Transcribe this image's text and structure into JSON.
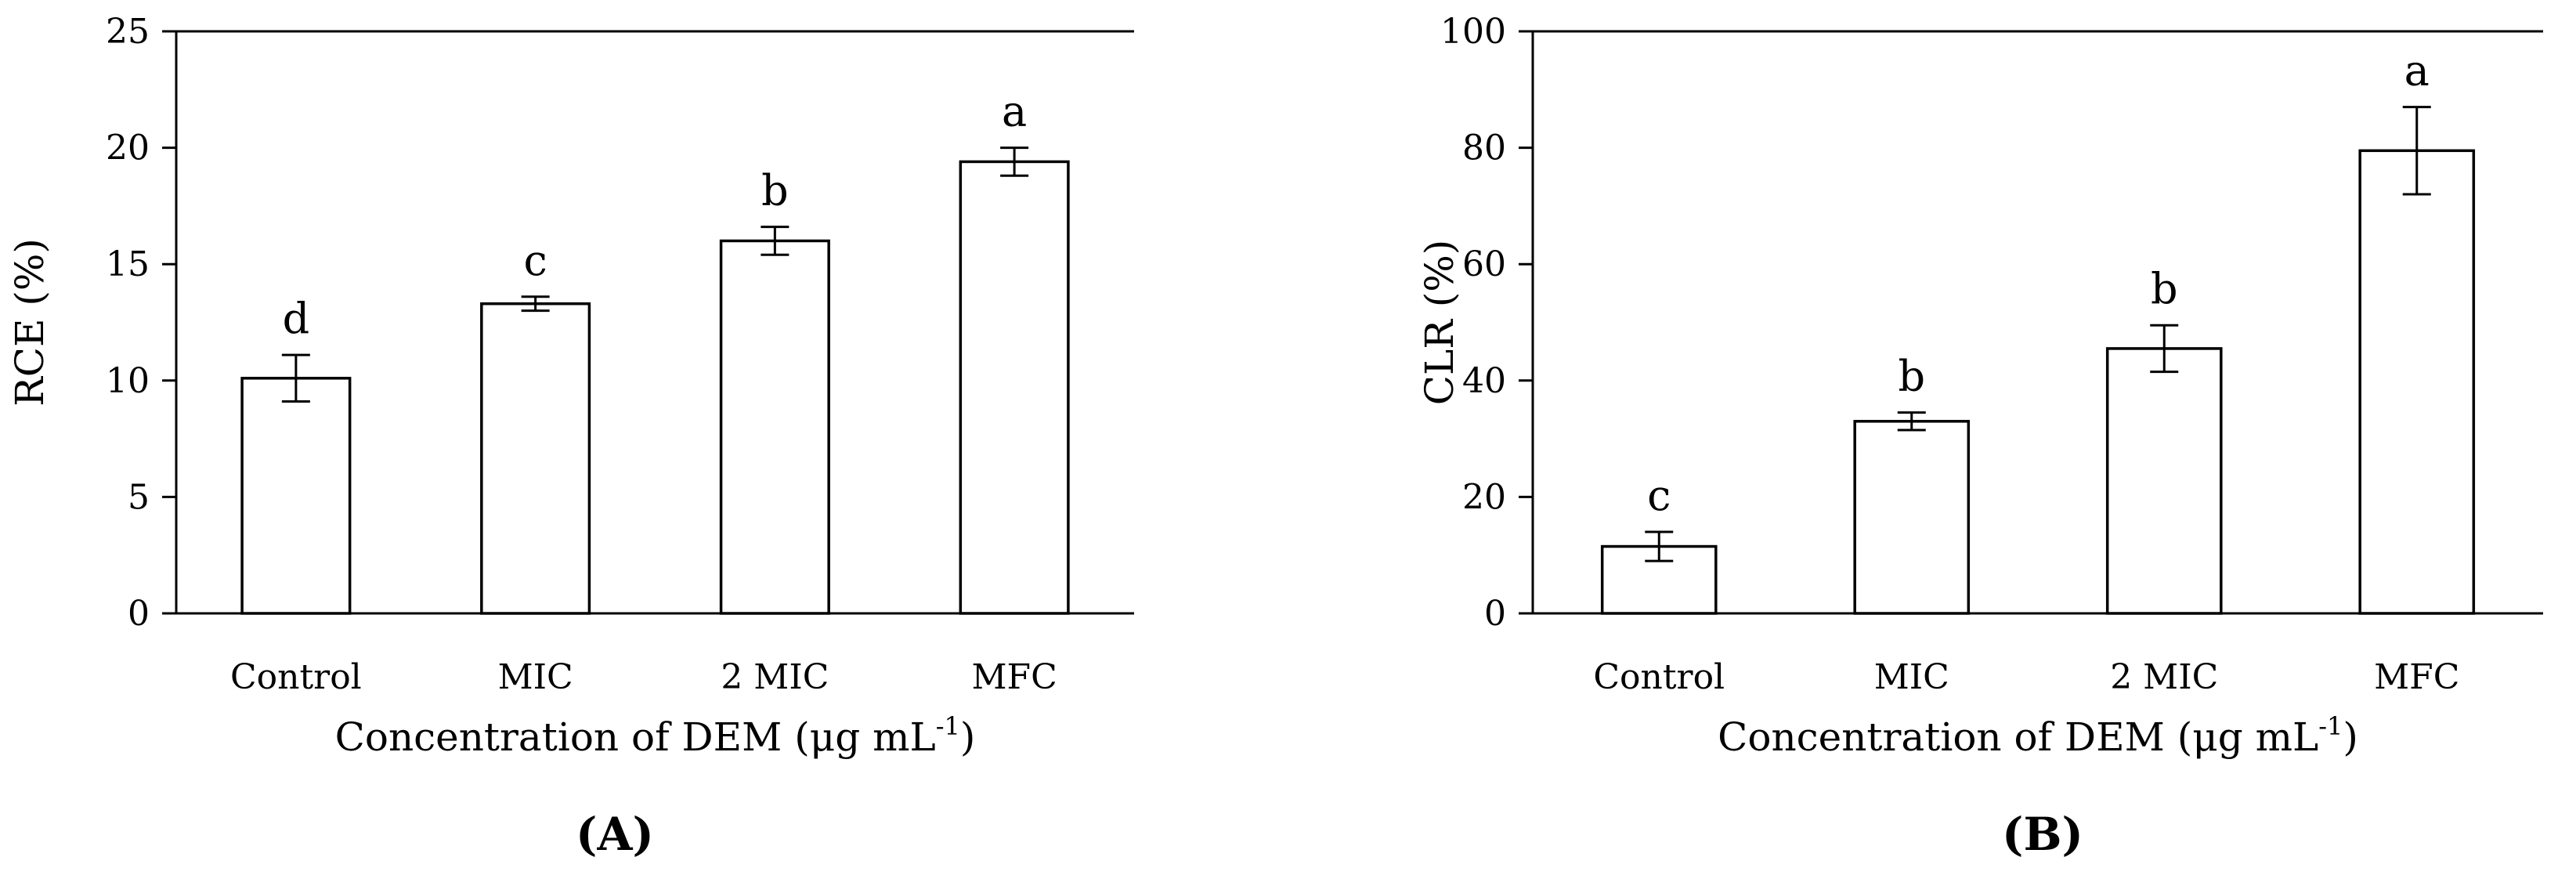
{
  "chart_data": [
    {
      "type": "bar",
      "panel_label": "(A)",
      "title": "",
      "categories": [
        "Control",
        "MIC",
        "2 MIC",
        "MFC"
      ],
      "values": [
        10.1,
        13.3,
        16.0,
        19.4
      ],
      "errors": [
        1.0,
        0.3,
        0.6,
        0.6
      ],
      "significance": [
        "d",
        "c",
        "b",
        "a"
      ],
      "xlabel": "Concentration of DEM (μg mL",
      "xlabel_sup": "-1",
      "xlabel_end": ")",
      "ylabel": "RCE (%)",
      "ylim": [
        0,
        25
      ],
      "yticks": [
        "0",
        "5",
        "10",
        "15",
        "20",
        "25"
      ],
      "grid": false,
      "bar_fill": "#ffffff",
      "bar_stroke": "#000000"
    },
    {
      "type": "bar",
      "panel_label": "(B)",
      "title": "",
      "categories": [
        "Control",
        "MIC",
        "2 MIC",
        "MFC"
      ],
      "values": [
        11.5,
        33.0,
        45.5,
        79.5
      ],
      "errors": [
        2.5,
        1.5,
        4.0,
        7.5
      ],
      "significance": [
        "c",
        "b",
        "b",
        "a"
      ],
      "xlabel": "Concentration of DEM (μg mL",
      "xlabel_sup": "-1",
      "xlabel_end": ")",
      "ylabel": "CLR (%)",
      "ylim": [
        0,
        100
      ],
      "yticks": [
        "0",
        "20",
        "40",
        "60",
        "80",
        "100"
      ],
      "grid": false,
      "bar_fill": "#ffffff",
      "bar_stroke": "#000000"
    }
  ]
}
